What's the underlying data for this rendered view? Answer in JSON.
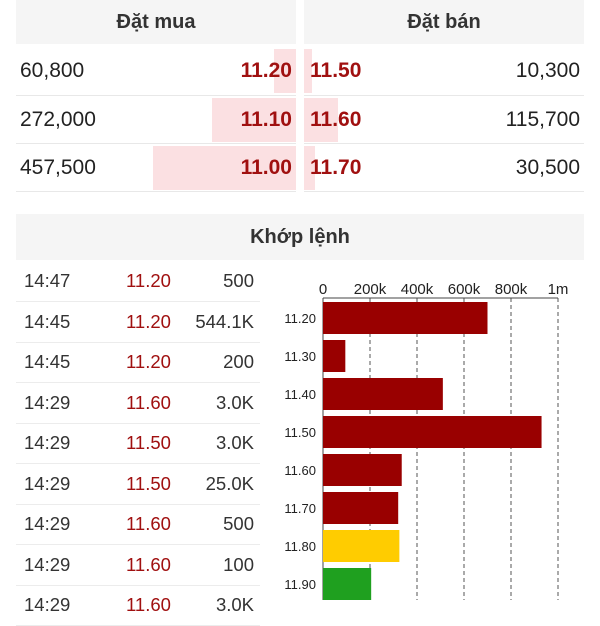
{
  "orderbook": {
    "bid_header": "Đặt mua",
    "ask_header": "Đặt bán",
    "rows": [
      {
        "bid_volume": "60,800",
        "bid_price": "11.20",
        "ask_price": "11.50",
        "ask_volume": "10,300",
        "bid_depth": 0.08,
        "ask_depth": 0.03
      },
      {
        "bid_volume": "272,000",
        "bid_price": "11.10",
        "ask_price": "11.60",
        "ask_volume": "115,700",
        "bid_depth": 0.3,
        "ask_depth": 0.12
      },
      {
        "bid_volume": "457,500",
        "bid_price": "11.00",
        "ask_price": "11.70",
        "ask_volume": "30,500",
        "bid_depth": 0.51,
        "ask_depth": 0.04
      }
    ]
  },
  "matched": {
    "title": "Khớp lệnh",
    "trades": [
      {
        "time": "14:47",
        "price": "11.20",
        "volume": "500"
      },
      {
        "time": "14:45",
        "price": "11.20",
        "volume": "544.1K"
      },
      {
        "time": "14:45",
        "price": "11.20",
        "volume": "200"
      },
      {
        "time": "14:29",
        "price": "11.60",
        "volume": "3.0K"
      },
      {
        "time": "14:29",
        "price": "11.50",
        "volume": "3.0K"
      },
      {
        "time": "14:29",
        "price": "11.50",
        "volume": "25.0K"
      },
      {
        "time": "14:29",
        "price": "11.60",
        "volume": "500"
      },
      {
        "time": "14:29",
        "price": "11.60",
        "volume": "100"
      },
      {
        "time": "14:29",
        "price": "11.60",
        "volume": "3.0K"
      }
    ]
  },
  "colors": {
    "down": "#990000",
    "reference": "#ffcc00",
    "up": "#1fa01f",
    "bid_depth": "#fbe0e2"
  },
  "chart_data": {
    "type": "bar",
    "orientation": "horizontal",
    "categories": [
      "11.20",
      "11.30",
      "11.40",
      "11.50",
      "11.60",
      "11.70",
      "11.80",
      "11.90"
    ],
    "values": [
      700000,
      95000,
      510000,
      930000,
      335000,
      320000,
      325000,
      205000
    ],
    "bar_colors": [
      "#990000",
      "#990000",
      "#990000",
      "#990000",
      "#990000",
      "#990000",
      "#ffcc00",
      "#1fa01f"
    ],
    "tick_values": [
      0,
      200000,
      400000,
      600000,
      800000,
      1000000
    ],
    "tick_labels": [
      "0",
      "200k",
      "400k",
      "600k",
      "800k",
      "1m"
    ],
    "xlim": [
      0,
      1000000
    ],
    "grid": "vertical dashed",
    "xaxis_position": "top"
  }
}
